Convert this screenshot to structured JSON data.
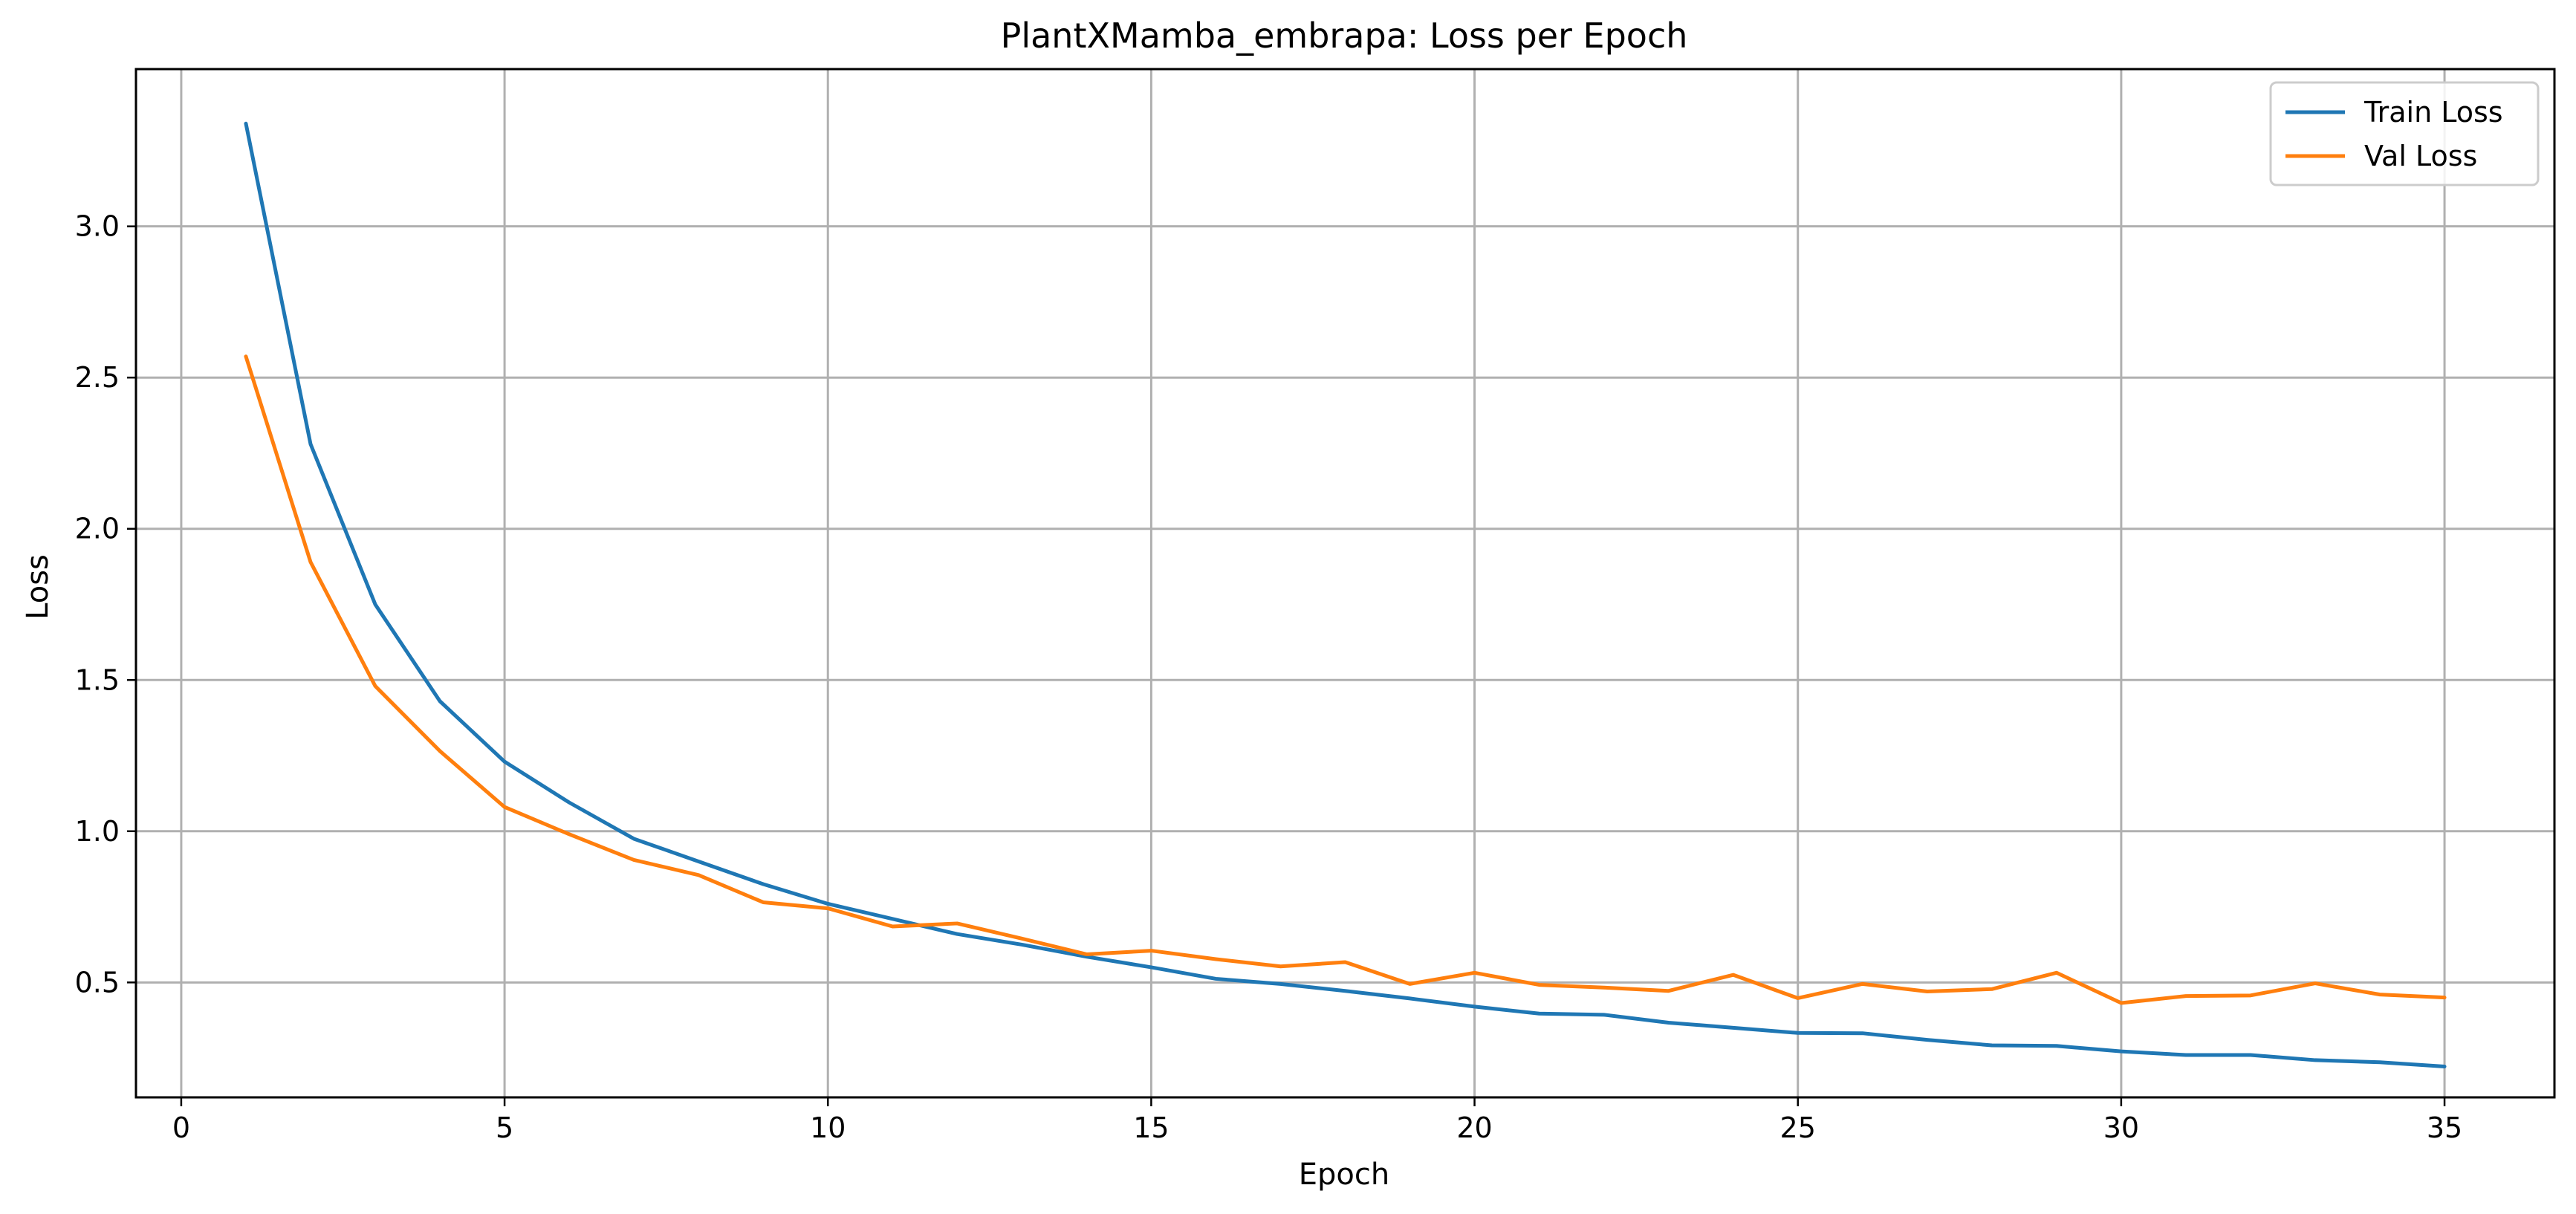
{
  "chart_data": {
    "type": "line",
    "title": "PlantXMamba_embrapa: Loss per Epoch",
    "xlabel": "Epoch",
    "ylabel": "Loss",
    "xlim": [
      -0.7,
      36.7
    ],
    "ylim": [
      0.12,
      3.52
    ],
    "xticks": [
      0,
      5,
      10,
      15,
      20,
      25,
      30,
      35
    ],
    "yticks": [
      0.5,
      1.0,
      1.5,
      2.0,
      2.5,
      3.0
    ],
    "grid": true,
    "legend_position": "top-right",
    "x": [
      1,
      2,
      3,
      4,
      5,
      6,
      7,
      8,
      9,
      10,
      11,
      12,
      13,
      14,
      15,
      16,
      17,
      18,
      19,
      20,
      21,
      22,
      23,
      24,
      25,
      26,
      27,
      28,
      29,
      30,
      31,
      32,
      33,
      34,
      35
    ],
    "series": [
      {
        "name": "Train Loss",
        "color": "#1f77b4",
        "values": [
          3.34,
          2.28,
          1.75,
          1.43,
          1.23,
          1.095,
          0.975,
          0.9,
          0.825,
          0.76,
          0.71,
          0.66,
          0.625,
          0.585,
          0.55,
          0.512,
          0.495,
          0.472,
          0.447,
          0.42,
          0.397,
          0.393,
          0.367,
          0.35,
          0.333,
          0.332,
          0.31,
          0.292,
          0.29,
          0.272,
          0.26,
          0.26,
          0.243,
          0.236,
          0.222
        ]
      },
      {
        "name": "Val Loss",
        "color": "#ff7f0e",
        "values": [
          2.57,
          1.89,
          1.48,
          1.265,
          1.08,
          0.99,
          0.905,
          0.855,
          0.765,
          0.745,
          0.685,
          0.695,
          0.645,
          0.593,
          0.605,
          0.577,
          0.553,
          0.567,
          0.495,
          0.532,
          0.492,
          0.483,
          0.472,
          0.525,
          0.448,
          0.495,
          0.47,
          0.478,
          0.532,
          0.432,
          0.455,
          0.457,
          0.497,
          0.46,
          0.45
        ]
      }
    ]
  }
}
